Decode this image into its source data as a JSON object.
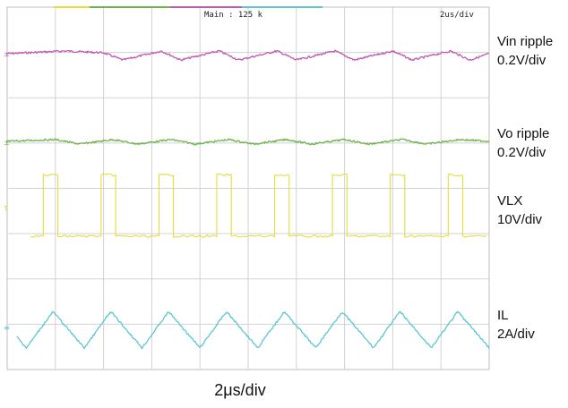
{
  "chart_data": {
    "type": "line",
    "title": "",
    "header": {
      "main_label": "Main : 125 k",
      "timebase_label": "2us/div"
    },
    "x_divisions": 10,
    "y_divisions": 8,
    "grid": true,
    "xlabel": "2μs/div",
    "series": [
      {
        "name": "Vin ripple",
        "scale": "0.2V/div",
        "color": "#c05ab0",
        "waveform": "periodic-ripple",
        "marker_glyph": "±",
        "x": [
          0,
          1.2,
          2.0,
          2.4,
          3.2,
          3.6,
          4.4,
          4.8,
          5.6,
          6.0,
          6.8,
          7.2,
          8.0,
          8.4,
          9.2,
          9.6,
          10
        ],
        "y": [
          0,
          0.15,
          0.05,
          -0.35,
          0.15,
          -0.35,
          0.15,
          -0.35,
          0.15,
          -0.35,
          0.15,
          -0.35,
          0.15,
          -0.35,
          0.15,
          -0.35,
          0.0
        ]
      },
      {
        "name": "Vo ripple",
        "scale": "0.2V/div",
        "color": "#6fb34e",
        "waveform": "periodic-ripple",
        "marker_glyph": "±",
        "x": [
          0,
          1.0,
          1.5,
          2.2,
          2.7,
          3.4,
          3.9,
          4.6,
          5.1,
          5.8,
          6.3,
          7.0,
          7.5,
          8.2,
          8.7,
          9.4,
          10
        ],
        "y": [
          0,
          0.1,
          -0.15,
          0.1,
          -0.15,
          0.1,
          -0.15,
          0.1,
          -0.15,
          0.1,
          -0.15,
          0.1,
          -0.15,
          0.1,
          -0.15,
          0.1,
          0
        ]
      },
      {
        "name": "VLX",
        "scale": "10V/div",
        "color": "#e6dc3a",
        "waveform": "square",
        "marker_glyph": "T",
        "period_div": 1.2,
        "first_rise_div": 0.75,
        "high_width_div": 0.3,
        "high_level_div": 1.5,
        "low_level_div": 0,
        "xlim": [
          0.5,
          10
        ]
      },
      {
        "name": "IL",
        "scale": "2A/div",
        "color": "#5cc7d2",
        "waveform": "triangle",
        "marker_glyph": "≡",
        "period_div": 1.2,
        "peak_x_div": 0.95,
        "valley_x_div": 0.4,
        "peak_div": 0.35,
        "valley_div": -0.45,
        "xlim": [
          0.2,
          10
        ]
      }
    ]
  }
}
